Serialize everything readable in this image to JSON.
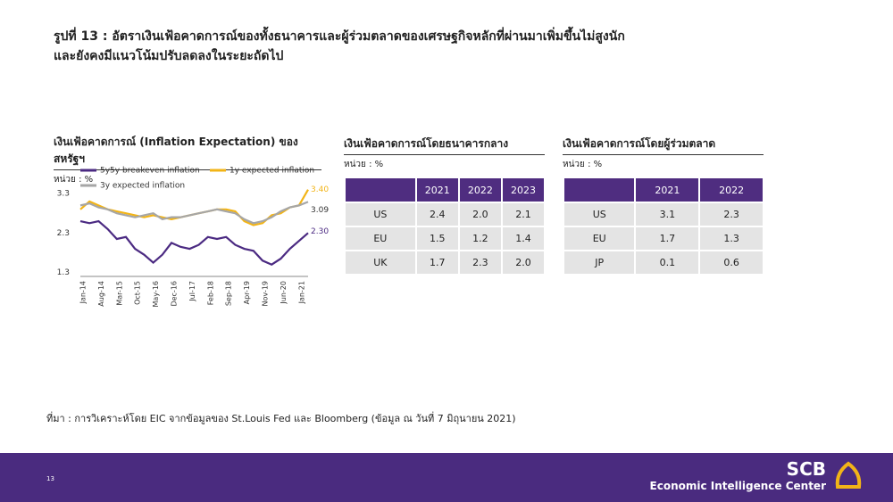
{
  "header": {
    "title_lines": [
      "รูปที่ 13 : อัตราเงินเฟ้อคาดการณ์ของทั้งธนาคารและผู้ร่วมตลาดของเศรษฐกิจหลักที่ผ่านมาเพิ่มขึ้นไม่สูงนัก",
      "และยังคงมีแนวโน้มปรับลดลงในระยะถัดไป"
    ]
  },
  "chart_data": {
    "type": "line",
    "title": "เงินเฟ้อคาดการณ์ (Inflation Expectation) ของสหรัฐฯ",
    "subtitle": "หน่วย : %",
    "categories": [
      "Jan-14",
      null,
      "Aug-14",
      null,
      "Mar-15",
      null,
      "Oct-15",
      null,
      "May-16",
      null,
      "Dec-16",
      null,
      "Jul-17",
      null,
      "Feb-18",
      null,
      "Sep-18",
      null,
      "Apr-19",
      null,
      "Nov-19",
      null,
      "Jun-20",
      null,
      "Jan-21",
      null
    ],
    "series": [
      {
        "name": "5y5y breakeven inflation",
        "color": "#4b2a82",
        "values": [
          2.6,
          2.55,
          2.6,
          2.4,
          2.15,
          2.2,
          1.9,
          1.75,
          1.55,
          1.75,
          2.05,
          1.95,
          1.9,
          2.0,
          2.2,
          2.15,
          2.2,
          2.0,
          1.9,
          1.85,
          1.6,
          1.5,
          1.65,
          1.9,
          2.1,
          2.3
        ]
      },
      {
        "name": "1y expected inflation",
        "color": "#f2b417",
        "values": [
          2.9,
          3.1,
          3.0,
          2.9,
          2.85,
          2.8,
          2.75,
          2.7,
          2.75,
          2.7,
          2.65,
          2.7,
          2.75,
          2.8,
          2.85,
          2.9,
          2.9,
          2.85,
          2.6,
          2.5,
          2.55,
          2.75,
          2.8,
          2.95,
          3.0,
          3.4
        ]
      },
      {
        "name": "3y expected inflation",
        "color": "#a6a6a6",
        "values": [
          3.0,
          3.05,
          2.95,
          2.9,
          2.8,
          2.75,
          2.7,
          2.75,
          2.8,
          2.65,
          2.7,
          2.7,
          2.75,
          2.8,
          2.85,
          2.9,
          2.85,
          2.8,
          2.65,
          2.55,
          2.6,
          2.7,
          2.85,
          2.95,
          3.0,
          3.09
        ]
      }
    ],
    "annotations": [
      "2.30",
      "3.40",
      "3.09"
    ],
    "ylim": [
      1.2,
      3.8
    ],
    "yticks": [
      1.3,
      2.3,
      3.3
    ]
  },
  "tables": {
    "central_bank": {
      "title": "เงินเฟ้อคาดการณ์โดยธนาคารกลาง",
      "unit": "หน่วย : %",
      "header": [
        "2021",
        "2022",
        "2023"
      ],
      "rows": [
        [
          "US",
          "2.4",
          "2.0",
          "2.1"
        ],
        [
          "EU",
          "1.5",
          "1.2",
          "1.4"
        ],
        [
          "UK",
          "1.7",
          "2.3",
          "2.0"
        ]
      ]
    },
    "market": {
      "title": "เงินเฟ้อคาดการณ์โดยผู้ร่วมตลาด",
      "unit": "หน่วย : %",
      "header": [
        "2021",
        "2022"
      ],
      "rows": [
        [
          "US",
          "3.1",
          "2.3"
        ],
        [
          "EU",
          "1.7",
          "1.3"
        ],
        [
          "JP",
          "0.1",
          "0.6"
        ]
      ]
    }
  },
  "footer": {
    "source": "ที่มา : การวิเคราะห์โดย EIC จากข้อมูลของ  St.Louis Fed และ Bloomberg (ข้อมูล ณ วันที่ 7 มิถุนายน 2021)",
    "page": "13",
    "brand": "SCB",
    "brand_sub": "Economic Intelligence Center"
  }
}
